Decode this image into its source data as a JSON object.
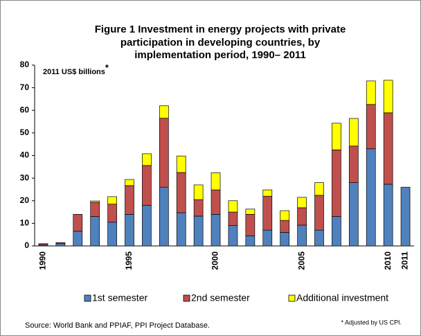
{
  "chart_data": {
    "type": "stacked_bar",
    "title": [
      "Figure 1 Investment in energy projects with private",
      "participation in developing countries, by",
      "implementation period, 1990– 2011"
    ],
    "y_label": "2011 US$  billions",
    "y_label_mark": "*",
    "categories": [
      "1990",
      null,
      null,
      null,
      null,
      "1995",
      null,
      null,
      null,
      null,
      "2000",
      null,
      null,
      null,
      null,
      "2005",
      null,
      null,
      null,
      null,
      "2010",
      "2011"
    ],
    "series": [
      {
        "name": "1st semester",
        "color": "#4f81bd",
        "values": [
          0.5,
          1,
          6.5,
          13,
          10.5,
          14,
          18,
          26,
          14.7,
          13.2,
          14,
          9,
          4.5,
          7,
          6,
          9.2,
          7,
          13,
          28,
          43,
          27.3,
          26
        ]
      },
      {
        "name": "2nd semester",
        "color": "#c0504d",
        "values": [
          0.5,
          0.5,
          7.5,
          6.3,
          8,
          12.7,
          17.6,
          30.5,
          17.8,
          7.3,
          10.8,
          6,
          9.5,
          15,
          5.3,
          7.7,
          15.4,
          29.5,
          16.2,
          19.6,
          31.6,
          0
        ]
      },
      {
        "name": "Additional investment",
        "color": "#ffff00",
        "values": [
          0,
          0,
          0,
          0.6,
          3.3,
          2.7,
          5.2,
          5.5,
          7.3,
          6.5,
          7.6,
          5,
          2.3,
          2.8,
          4.3,
          4.6,
          5.6,
          11.8,
          12.2,
          10.4,
          14.4,
          0
        ]
      }
    ],
    "ylim": [
      0,
      80
    ],
    "yticks": [
      0,
      10,
      20,
      30,
      40,
      50,
      60,
      70,
      80
    ],
    "source": "Source:  World Bank and PPIAF, PPI Project Database.",
    "footnote": "* Adjusted by US CPI."
  }
}
